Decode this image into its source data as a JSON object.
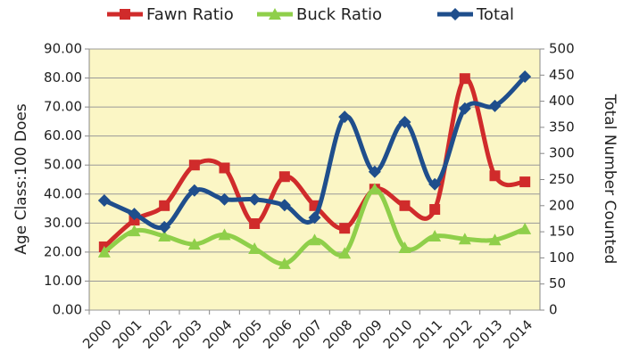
{
  "chart_data": {
    "type": "line",
    "categories": [
      "2000",
      "2001",
      "2002",
      "2003",
      "2004",
      "2005",
      "2006",
      "2007",
      "2008",
      "2009",
      "2010",
      "2011",
      "2012",
      "2013",
      "2014"
    ],
    "series": [
      {
        "name": "Fawn Ratio",
        "color": "#d02b2b",
        "marker": "square",
        "values": [
          21.8,
          31,
          36,
          50,
          49,
          29.8,
          46,
          36,
          28.2,
          41.7,
          36,
          34.7,
          79.8,
          46.3,
          44.2
        ]
      },
      {
        "name": "Buck Ratio",
        "color": "#8fcf4a",
        "marker": "triangle",
        "values": [
          20,
          27.3,
          25.5,
          22.7,
          26,
          21.2,
          16,
          24.2,
          19.6,
          41.7,
          21.5,
          25.5,
          24.5,
          24.2,
          28
        ]
      },
      {
        "name": "Total",
        "color": "#1f4e8c",
        "marker": "diamond",
        "axis": "y2",
        "values": [
          210,
          184,
          159,
          229,
          212,
          212,
          201,
          177,
          370,
          265,
          360,
          241,
          386,
          391,
          447
        ]
      }
    ],
    "ylabel": "Age Class:100 Does",
    "y2label": "Total Number Counted",
    "ylim": [
      0,
      90
    ],
    "yticks": [
      {
        "value": 0,
        "label": "0.00"
      },
      {
        "value": 10,
        "label": "10.00"
      },
      {
        "value": 20,
        "label": "20.00"
      },
      {
        "value": 30,
        "label": "30.00"
      },
      {
        "value": 40,
        "label": "40.00"
      },
      {
        "value": 50,
        "label": "50.00"
      },
      {
        "value": 60,
        "label": "60.00"
      },
      {
        "value": 70,
        "label": "70.00"
      },
      {
        "value": 80,
        "label": "80.00"
      },
      {
        "value": 90,
        "label": "90.00"
      }
    ],
    "y2lim": [
      0,
      500
    ],
    "y2ticks": [
      0,
      50,
      100,
      150,
      200,
      250,
      300,
      350,
      400,
      450,
      500
    ],
    "grid": true,
    "legend": "top"
  }
}
